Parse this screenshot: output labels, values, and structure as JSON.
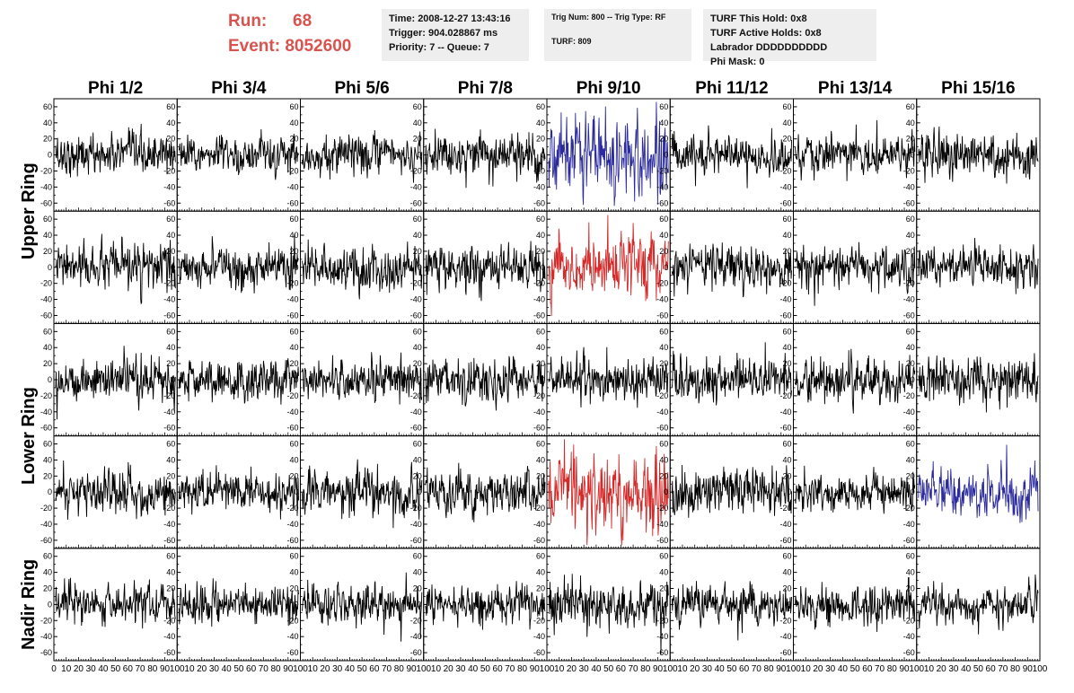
{
  "header": {
    "run_label": "Run:",
    "run_value": "68",
    "event_label": "Event:",
    "event_value": "8052600",
    "time_line": "Time: 2008-12-27 13:43:16",
    "trigger_line": "Trigger: 904.028867 ms",
    "priority_line": "Priority: 7 -- Queue: 7",
    "trig_line": "Trig Num: 800 -- Trig Type: RF",
    "turf_line": "TURF: 809",
    "turf_hold_line": "TURF This Hold: 0x8",
    "turf_active_line": "TURF Active Holds: 0x8",
    "labrador_line": "Labrador DDDDDDDDDD",
    "phi_mask_line": "Phi Mask: 0"
  },
  "colors": {
    "header_text": "#d9534f",
    "info_bg": "#eeeeee",
    "trace_default": "#000000",
    "trace_blue": "#2b2b9e",
    "trace_red": "#d42a2a"
  },
  "chart_data": {
    "type": "line",
    "columns": [
      "Phi 1/2",
      "Phi 3/4",
      "Phi 5/6",
      "Phi 7/8",
      "Phi 9/10",
      "Phi 11/12",
      "Phi 13/14",
      "Phi 15/16"
    ],
    "ring_labels": [
      {
        "text": "Upper Ring",
        "rows": [
          0,
          1
        ]
      },
      {
        "text": "Lower Ring",
        "rows": [
          2,
          3
        ]
      },
      {
        "text": "Nadir Ring",
        "rows": [
          4,
          4
        ]
      }
    ],
    "rows": 5,
    "xlim": [
      0,
      100
    ],
    "ylim": [
      -70,
      70
    ],
    "yticks": [
      -60,
      -40,
      -20,
      0,
      20,
      40,
      60
    ],
    "xticks": [
      0,
      10,
      20,
      30,
      40,
      50,
      60,
      70,
      80,
      90,
      100
    ],
    "samples_per_trace": 260,
    "trace_amplitude_rms": [
      [
        12,
        11,
        12,
        13,
        20,
        11,
        12,
        13
      ],
      [
        13,
        12,
        14,
        14,
        15,
        13,
        12,
        13
      ],
      [
        13,
        12,
        13,
        14,
        13,
        13,
        13,
        13
      ],
      [
        13,
        12,
        14,
        13,
        18,
        14,
        12,
        12
      ],
      [
        12,
        11,
        12,
        12,
        15,
        12,
        12,
        12
      ]
    ],
    "highlighted_traces": [
      {
        "row": 0,
        "col": 4,
        "color": "blue"
      },
      {
        "row": 1,
        "col": 4,
        "color": "red"
      },
      {
        "row": 3,
        "col": 4,
        "color": "red"
      },
      {
        "row": 3,
        "col": 7,
        "color": "blue"
      }
    ]
  }
}
